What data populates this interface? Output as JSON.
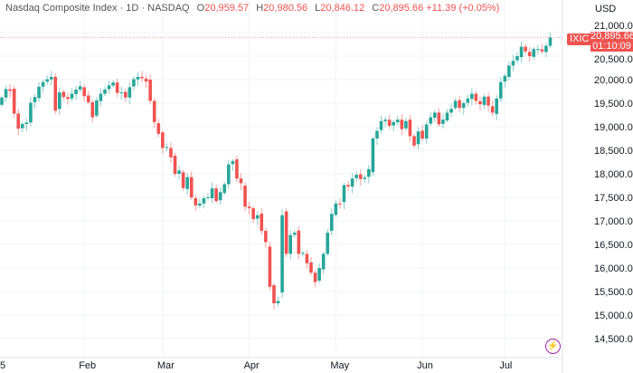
{
  "header": {
    "title": "Nasdaq Composite Index · 1D · NASDAQ",
    "open_label": "O",
    "open": "20,959.57",
    "high_label": "H",
    "high": "20,980.56",
    "low_label": "L",
    "low": "20,846.12",
    "close_label": "C",
    "close": "20,895.66",
    "change": "+11.39 (+0.05%)"
  },
  "currency": "USD",
  "last_price_tag": {
    "symbol": "IXIC",
    "price": "20,895.66",
    "countdown": "01:10:09"
  },
  "colors": {
    "up": "#26a69a",
    "down": "#ef5350",
    "accent": "#9c27b0"
  },
  "icons": {
    "bottom_right": "lightning-icon"
  },
  "chart_data": {
    "type": "candlestick",
    "title": "Nasdaq Composite Index",
    "ylim": [
      14250,
      21150
    ],
    "y_ticks": [
      "21,000.00",
      "20,500.00",
      "20,000.00",
      "19,500.00",
      "19,000.00",
      "18,500.00",
      "18,000.00",
      "17,500.00",
      "17,000.00",
      "16,500.00",
      "16,000.00",
      "15,500.00",
      "15,000.00",
      "14,500.00"
    ],
    "y_tick_values": [
      21000,
      20500,
      20000,
      19500,
      19000,
      18500,
      18000,
      17500,
      17000,
      16500,
      16000,
      15500,
      15000,
      14500
    ],
    "x_ticks": [
      {
        "label": "5",
        "index": 0
      },
      {
        "label": "Feb",
        "index": 20
      },
      {
        "label": "Mar",
        "index": 39
      },
      {
        "label": "Apr",
        "index": 60
      },
      {
        "label": "May",
        "index": 81
      },
      {
        "label": "Jun",
        "index": 102
      },
      {
        "label": "Jul",
        "index": 122
      }
    ],
    "closes": [
      19620,
      19800,
      19760,
      19280,
      18960,
      19060,
      19090,
      19510,
      19630,
      19850,
      19950,
      20010,
      20060,
      19340,
      19730,
      19630,
      19590,
      19700,
      19790,
      19860,
      19650,
      19520,
      19200,
      19560,
      19700,
      19790,
      19880,
      19940,
      19720,
      19730,
      19620,
      19840,
      20010,
      20060,
      20030,
      19960,
      19550,
      19100,
      18850,
      18550,
      18570,
      18350,
      18000,
      18070,
      17700,
      17930,
      17500,
      17330,
      17370,
      17480,
      17500,
      17690,
      17420,
      17610,
      17780,
      18200,
      18270,
      17900,
      17800,
      17300,
      17270,
      17040,
      17120,
      16790,
      16550,
      15600,
      15250,
      15300,
      17120,
      16300,
      16700,
      16750,
      16300,
      16320,
      16100,
      15900,
      15700,
      16000,
      16300,
      16750,
      17150,
      17370,
      17360,
      17760,
      17730,
      17900,
      17980,
      17890,
      17920,
      18100,
      18750,
      18910,
      19120,
      19150,
      19020,
      19100,
      19150,
      18950,
      19120,
      18800,
      18600,
      18900,
      18750,
      19050,
      19200,
      19300,
      19050,
      19150,
      19300,
      19380,
      19550,
      19400,
      19500,
      19600,
      19700,
      19550,
      19480,
      19640,
      19450,
      19300,
      19600,
      19950,
      20080,
      20300,
      20400,
      20500,
      20700,
      20600,
      20500,
      20650,
      20650,
      20600,
      20720,
      20895
    ],
    "first_open": 19480,
    "last_price": 20895.66
  }
}
